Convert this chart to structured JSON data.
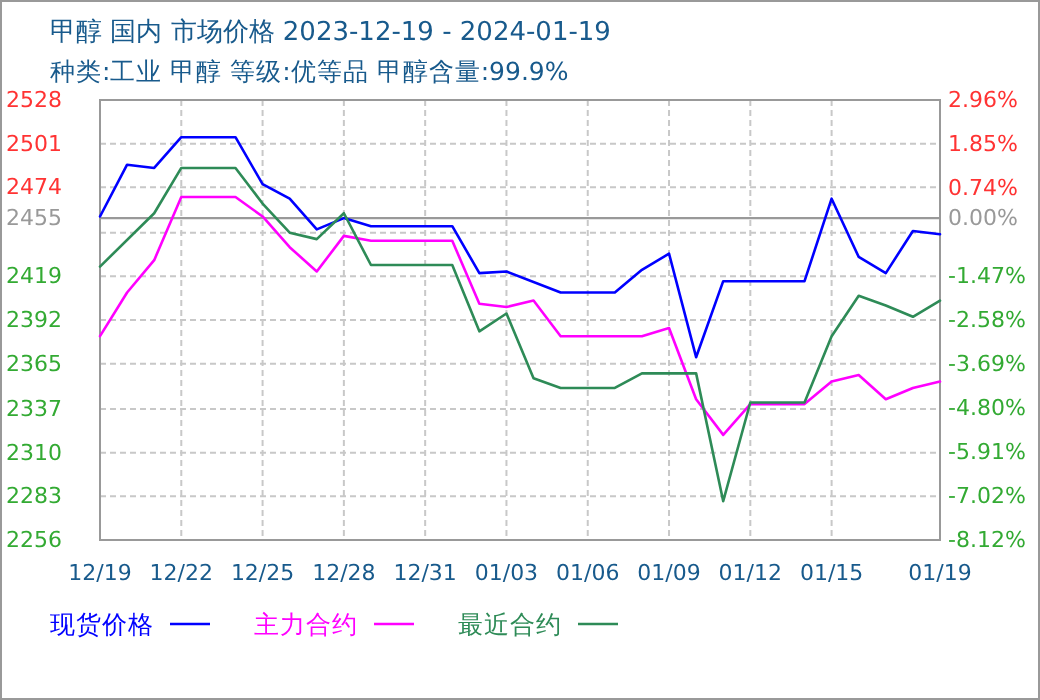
{
  "chart_data": {
    "type": "line",
    "title": "甲醇 国内 市场价格 2023-12-19 - 2024-01-19",
    "subtitle": "种类:工业 甲醇 等级:优等品 甲醇含量:99.9%",
    "xlim": [
      "2023-12-19",
      "2024-01-19"
    ],
    "xticks": [
      {
        "value": "2023-12-19",
        "label": "12/19"
      },
      {
        "value": "2023-12-22",
        "label": "12/22"
      },
      {
        "value": "2023-12-25",
        "label": "12/25"
      },
      {
        "value": "2023-12-28",
        "label": "12/28"
      },
      {
        "value": "2023-12-31",
        "label": "12/31"
      },
      {
        "value": "2024-01-03",
        "label": "01/03"
      },
      {
        "value": "2024-01-06",
        "label": "01/06"
      },
      {
        "value": "2024-01-09",
        "label": "01/09"
      },
      {
        "value": "2024-01-12",
        "label": "01/12"
      },
      {
        "value": "2024-01-15",
        "label": "01/15"
      },
      {
        "value": "2024-01-19",
        "label": "01/19"
      }
    ],
    "ylim": [
      2256,
      2528
    ],
    "yticks": [
      2528,
      2501,
      2474,
      2455,
      {
        "value": 2446,
        "label": null
      },
      2419,
      2392,
      2365,
      2337,
      2310,
      2283,
      2256
    ],
    "y2lim": [
      -8.12,
      2.96
    ],
    "y2ticks": [
      {
        "value": 2.96,
        "label": "2.96%"
      },
      {
        "value": 1.85,
        "label": "1.85%"
      },
      {
        "value": 0.74,
        "label": "0.74%"
      },
      {
        "value": 0,
        "label": "0.00%"
      },
      {
        "value": -1.47,
        "label": "-1.47%"
      },
      {
        "value": -2.58,
        "label": "-2.58%"
      },
      {
        "value": -3.69,
        "label": "-3.69%"
      },
      {
        "value": -4.8,
        "label": "-4.80%"
      },
      {
        "value": -5.91,
        "label": "-5.91%"
      },
      {
        "value": -7.02,
        "label": "-7.02%"
      },
      {
        "value": -8.12,
        "label": "-8.12%"
      }
    ],
    "ref_lines": [
      {
        "axis": "y",
        "value": 2455,
        "color": "#999999"
      }
    ],
    "grid": true,
    "legend": "bottom",
    "line_style": "solid",
    "series": [
      {
        "name": "现货价格",
        "color": "#0000ff",
        "x": [
          "2023-12-19",
          "2023-12-20",
          "2023-12-21",
          "2023-12-22",
          "2023-12-24",
          "2023-12-25",
          "2023-12-26",
          "2023-12-27",
          "2023-12-28",
          "2023-12-29",
          "2024-01-01",
          "2024-01-02",
          "2024-01-03",
          "2024-01-05",
          "2024-01-07",
          "2024-01-08",
          "2024-01-09",
          "2024-01-10",
          "2024-01-11",
          "2024-01-14",
          "2024-01-15",
          "2024-01-16",
          "2024-01-17",
          "2024-01-18",
          "2024-01-19"
        ],
        "values": [
          2456,
          2488,
          2486,
          2505,
          2505,
          2476,
          2467,
          2448,
          2455,
          2450,
          2450,
          2421,
          2422,
          2409,
          2409,
          2423,
          2433,
          2369,
          2416,
          2416,
          2467,
          2431,
          2421,
          2447,
          2445
        ]
      },
      {
        "name": "主力合约",
        "color": "#ff00ff",
        "x": [
          "2023-12-19",
          "2023-12-20",
          "2023-12-21",
          "2023-12-22",
          "2023-12-24",
          "2023-12-25",
          "2023-12-26",
          "2023-12-27",
          "2023-12-28",
          "2023-12-29",
          "2024-01-01",
          "2024-01-02",
          "2024-01-03",
          "2024-01-04",
          "2024-01-05",
          "2024-01-08",
          "2024-01-09",
          "2024-01-10",
          "2024-01-11",
          "2024-01-12",
          "2024-01-14",
          "2024-01-15",
          "2024-01-16",
          "2024-01-17",
          "2024-01-18",
          "2024-01-19"
        ],
        "values": [
          2382,
          2409,
          2429,
          2468,
          2468,
          2456,
          2437,
          2422,
          2444,
          2441,
          2441,
          2402,
          2400,
          2404,
          2382,
          2382,
          2387,
          2343,
          2321,
          2340,
          2340,
          2354,
          2358,
          2343,
          2350,
          2354
        ]
      },
      {
        "name": "最近合约",
        "color": "#2e8b57",
        "x": [
          "2023-12-19",
          "2023-12-21",
          "2023-12-22",
          "2023-12-24",
          "2023-12-25",
          "2023-12-26",
          "2023-12-27",
          "2023-12-28",
          "2023-12-29",
          "2024-01-01",
          "2024-01-02",
          "2024-01-03",
          "2024-01-04",
          "2024-01-05",
          "2024-01-07",
          "2024-01-08",
          "2024-01-10",
          "2024-01-11",
          "2024-01-12",
          "2024-01-14",
          "2024-01-15",
          "2024-01-16",
          "2024-01-17",
          "2024-01-18",
          "2024-01-19"
        ],
        "values": [
          2425,
          2458,
          2486,
          2486,
          2464,
          2446,
          2442,
          2458,
          2426,
          2426,
          2385,
          2396,
          2356,
          2350,
          2350,
          2359,
          2359,
          2280,
          2341,
          2341,
          2382,
          2407,
          2401,
          2394,
          2404
        ]
      }
    ]
  }
}
